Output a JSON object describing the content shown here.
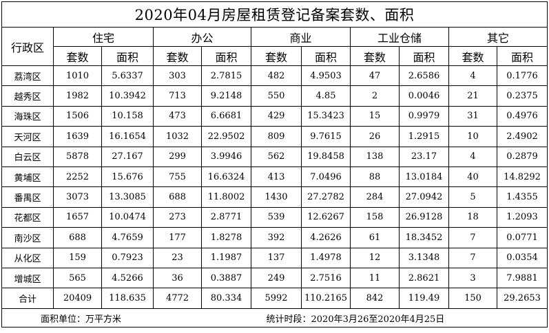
{
  "title": "2020年04月房屋租赁登记备案套数、面积",
  "header": {
    "district_label": "行政区",
    "groups": [
      "住宅",
      "办公",
      "商业",
      "工业仓储",
      "其它"
    ],
    "sub_count": "套数",
    "sub_area": "面积"
  },
  "rows": [
    {
      "district": "荔湾区",
      "values": [
        "1010",
        "5.6337",
        "303",
        "2.7815",
        "482",
        "4.9503",
        "47",
        "2.6586",
        "4",
        "0.1776"
      ]
    },
    {
      "district": "越秀区",
      "values": [
        "1982",
        "10.3942",
        "713",
        "9.2148",
        "550",
        "4.85",
        "2",
        "0.0046",
        "21",
        "0.2375"
      ]
    },
    {
      "district": "海珠区",
      "values": [
        "1506",
        "10.158",
        "473",
        "6.6681",
        "429",
        "15.3423",
        "15",
        "0.9979",
        "31",
        "0.4976"
      ]
    },
    {
      "district": "天河区",
      "values": [
        "1639",
        "16.1654",
        "1032",
        "22.9502",
        "809",
        "9.7615",
        "26",
        "1.2915",
        "10",
        "2.4902"
      ]
    },
    {
      "district": "白云区",
      "values": [
        "5878",
        "27.167",
        "299",
        "3.9946",
        "562",
        "19.8458",
        "138",
        "23.17",
        "4",
        "0.2879"
      ]
    },
    {
      "district": "黄埔区",
      "values": [
        "2252",
        "15.676",
        "755",
        "16.6324",
        "413",
        "7.0496",
        "88",
        "13.0184",
        "40",
        "14.8292"
      ]
    },
    {
      "district": "番禺区",
      "values": [
        "3073",
        "13.3085",
        "688",
        "11.8002",
        "1430",
        "27.2782",
        "284",
        "27.0942",
        "5",
        "1.4355"
      ]
    },
    {
      "district": "花都区",
      "values": [
        "1657",
        "10.0474",
        "273",
        "2.8771",
        "539",
        "12.6267",
        "158",
        "26.9128",
        "18",
        "1.2093"
      ]
    },
    {
      "district": "南沙区",
      "values": [
        "688",
        "4.7659",
        "177",
        "1.8278",
        "392",
        "4.2626",
        "61",
        "18.3452",
        "7",
        "0.0771"
      ]
    },
    {
      "district": "从化区",
      "values": [
        "159",
        "0.7923",
        "23",
        "1.1987",
        "137",
        "1.4978",
        "12",
        "3.1348",
        "7",
        "0.0354"
      ]
    },
    {
      "district": "增城区",
      "values": [
        "565",
        "4.5266",
        "36",
        "0.3887",
        "249",
        "2.7516",
        "11",
        "2.8621",
        "3",
        "7.9881"
      ]
    }
  ],
  "total": {
    "label": "合计",
    "values": [
      "20409",
      "118.635",
      "4772",
      "80.334",
      "5992",
      "110.2165",
      "842",
      "119.49",
      "150",
      "29.2653"
    ]
  },
  "footer": {
    "unit_note": "面积单位：万平方米",
    "period_note": "统计时段：2020年3月26至2020年4月25日"
  }
}
